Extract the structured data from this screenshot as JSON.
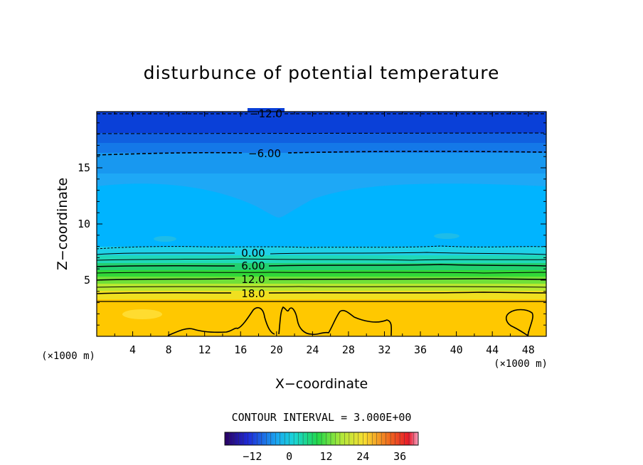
{
  "chart_data": {
    "type": "heatmap",
    "title": "disturbunce of potential temperature",
    "xlabel": "X−coordinate",
    "ylabel": "Z−coordinate",
    "x_unit_left": "(×1000 m)",
    "x_unit_right": "(×1000 m)",
    "xlim": [
      0,
      50
    ],
    "ylim": [
      0,
      20
    ],
    "x_ticks": [
      4,
      8,
      12,
      16,
      20,
      24,
      28,
      32,
      36,
      40,
      44,
      48
    ],
    "y_ticks": [
      5,
      10,
      15
    ],
    "contour_interval_text": "CONTOUR INTERVAL = 3.000E+00",
    "contour_labels": [
      {
        "text": "−12.0",
        "x": 19.0,
        "z": 19.5
      },
      {
        "text": "−6.00",
        "x": 19.0,
        "z": 16.3
      },
      {
        "text": "0.00",
        "x": 17.5,
        "z": 7.3
      },
      {
        "text": "6.00",
        "x": 17.5,
        "z": 6.3
      },
      {
        "text": "12.0",
        "x": 17.5,
        "z": 5.0
      },
      {
        "text": "18.0",
        "x": 17.5,
        "z": 3.7
      }
    ],
    "colorbar": {
      "range": [
        -21,
        42
      ],
      "ticks": [
        "−12",
        "0",
        "12",
        "24",
        "36"
      ],
      "tick_values": [
        -12,
        0,
        12,
        24,
        36
      ]
    },
    "grid": false
  }
}
